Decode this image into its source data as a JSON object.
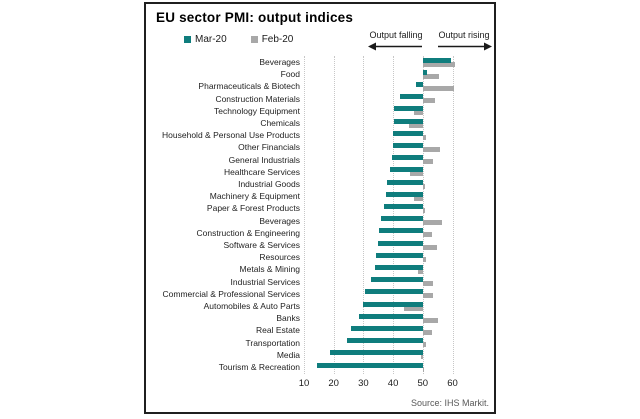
{
  "chart": {
    "title": "EU sector PMI: output indices",
    "source": "Source: IHS Markit.",
    "annotations": {
      "falling": "Output falling",
      "rising": "Output rising"
    }
  },
  "chart_data": {
    "type": "bar",
    "orientation": "horizontal",
    "baseline": 50,
    "title": "EU sector PMI: output indices",
    "xlabel": "",
    "ylabel": "",
    "x_ticks": [
      10,
      20,
      30,
      40,
      50,
      60
    ],
    "xlim": [
      10,
      63
    ],
    "grid": "vertical-dotted",
    "legend_position": "top-left",
    "note": "Bars pivot at the 50 no-change PMI level; values below 50 extend left, above 50 extend right",
    "categories": [
      "Beverages",
      "Food",
      "Pharmaceuticals & Biotech",
      "Construction Materials",
      "Technology Equipment",
      "Chemicals",
      "Household & Personal Use Products",
      "Other Financials",
      "General Industrials",
      "Healthcare Services",
      "Industrial Goods",
      "Machinery & Equipment",
      "Paper & Forest Products",
      "Beverages",
      "Construction & Engineering",
      "Software & Services",
      "Resources",
      "Metals & Mining",
      "Industrial Services",
      "Commercial & Professional Services",
      "Automobiles & Auto Parts",
      "Banks",
      "Real Estate",
      "Transportation",
      "Media",
      "Tourism & Recreation"
    ],
    "series": [
      {
        "name": "Mar-20",
        "color": "#0f7d7d",
        "values": [
          59.5,
          51.4,
          47.6,
          42.4,
          40.4,
          40.2,
          40.0,
          39.8,
          39.6,
          38.9,
          37.9,
          37.5,
          37.0,
          35.9,
          35.4,
          34.8,
          34.3,
          33.8,
          32.5,
          30.5,
          29.7,
          28.6,
          25.9,
          24.4,
          18.6,
          14.3
        ]
      },
      {
        "name": "Feb-20",
        "color": "#a8a8a8",
        "values": [
          61.0,
          55.6,
          60.5,
          54.1,
          47.1,
          45.4,
          51.2,
          55.7,
          53.3,
          45.8,
          50.8,
          47.0,
          50.6,
          56.5,
          53.0,
          54.8,
          51.0,
          48.5,
          53.6,
          53.4,
          43.8,
          55.0,
          53.0,
          51.0,
          49.4,
          50.3
        ]
      }
    ]
  }
}
